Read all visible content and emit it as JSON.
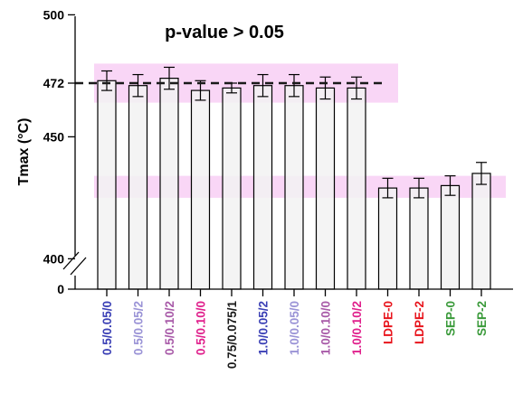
{
  "chart_data": {
    "type": "bar",
    "title": "p-value > 0.05",
    "xlabel": "",
    "ylabel": "Tmax (°C)",
    "y_axis_break": true,
    "y_ticks": [
      "0",
      "400",
      "450",
      "472",
      "500"
    ],
    "categories": [
      {
        "label": "0.5/0.05/0",
        "color": "#3a3fb5"
      },
      {
        "label": "0.5/0.05/2",
        "color": "#9a93d6"
      },
      {
        "label": "0.5/0.10/2",
        "color": "#a85aa8"
      },
      {
        "label": "0.5/0.10/0",
        "color": "#e0208c"
      },
      {
        "label": "0.75/0.075/1",
        "color": "#1a1a1a"
      },
      {
        "label": "1.0/0.05/2",
        "color": "#3a3fb5"
      },
      {
        "label": "1.0/0.05/0",
        "color": "#9a93d6"
      },
      {
        "label": "1.0/0.10/0",
        "color": "#a85aa8"
      },
      {
        "label": "1.0/0.10/2",
        "color": "#e0208c"
      },
      {
        "label": "LDPE-0",
        "color": "#e8141c"
      },
      {
        "label": "LDPE-2",
        "color": "#e8141c"
      },
      {
        "label": "SEP-0",
        "color": "#3a9a3a"
      },
      {
        "label": "SEP-2",
        "color": "#3a9a3a"
      }
    ],
    "values": [
      473,
      471,
      474,
      469,
      470,
      471,
      471,
      470,
      470,
      429,
      429,
      430,
      435
    ],
    "errors": [
      4,
      4.5,
      4.5,
      4,
      2,
      4.5,
      4.5,
      4.5,
      4.5,
      4,
      4,
      4,
      4.5
    ],
    "reference_line": 472,
    "bands": [
      [
        464,
        480
      ],
      [
        425,
        434
      ]
    ],
    "colors": {
      "bar_fill": "#f2f2f2",
      "band": "#f7c8f3",
      "axis": "#000000"
    }
  }
}
